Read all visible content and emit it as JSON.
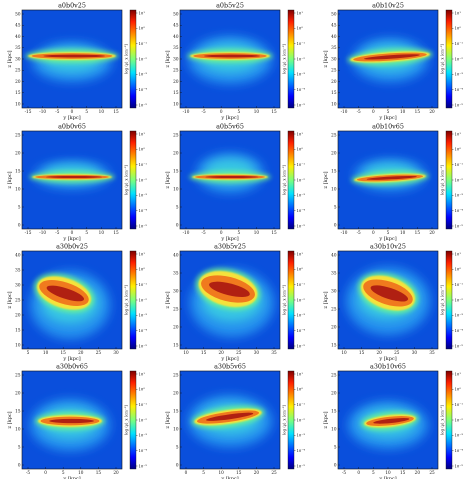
{
  "chart_data": {
    "type": "heatmap",
    "colormap": "jet",
    "panels": [
      {
        "title": "a0b0v25",
        "xlabel": "y [kpc]",
        "ylabel": "z [kpc]",
        "cbar_label": "log ⟨ρ⟩_x [cm⁻³]",
        "xticks": [
          "-15",
          "-10",
          "-5",
          "0",
          "5",
          "10",
          "15"
        ],
        "yticks": [
          "10",
          "15",
          "20",
          "25",
          "30",
          "35",
          "40",
          "45",
          "50"
        ],
        "cbticks": [
          "10¹",
          "10⁰",
          "10⁻¹",
          "10⁻²",
          "10⁻³",
          "10⁻⁴",
          "10⁻⁵"
        ]
      },
      {
        "title": "a0b5v25",
        "xlabel": "y [kpc]",
        "ylabel": "z [kpc]",
        "cbar_label": "log ⟨ρ⟩_x [cm⁻³]",
        "xticks": [
          "-10",
          "-5",
          "0",
          "5",
          "10",
          "15"
        ],
        "yticks": [
          "10",
          "15",
          "20",
          "25",
          "30",
          "35",
          "40",
          "45",
          "50"
        ],
        "cbticks": [
          "10¹",
          "10⁰",
          "10⁻¹",
          "10⁻²",
          "10⁻³",
          "10⁻⁴",
          "10⁻⁵"
        ]
      },
      {
        "title": "a0b10v25",
        "xlabel": "y [kpc]",
        "ylabel": "z [kpc]",
        "cbar_label": "log ⟨ρ⟩_x [cm⁻³]",
        "xticks": [
          "-10",
          "-5",
          "0",
          "5",
          "10",
          "15",
          "20"
        ],
        "yticks": [
          "10",
          "15",
          "20",
          "25",
          "30",
          "35",
          "40",
          "45",
          "50"
        ],
        "cbticks": [
          "10¹",
          "10⁰",
          "10⁻¹",
          "10⁻²",
          "10⁻³",
          "10⁻⁴",
          "10⁻⁵"
        ]
      },
      {
        "title": "a0b0v65",
        "xlabel": "y [kpc]",
        "ylabel": "z [kpc]",
        "cbar_label": "log ⟨ρ⟩_x [cm⁻³]",
        "xticks": [
          "-15",
          "-10",
          "-5",
          "0",
          "5",
          "10",
          "15"
        ],
        "yticks": [
          "0",
          "5",
          "10",
          "15",
          "20",
          "25"
        ],
        "cbticks": [
          "10¹",
          "10⁰",
          "10⁻¹",
          "10⁻²",
          "10⁻³",
          "10⁻⁴",
          "10⁻⁵"
        ]
      },
      {
        "title": "a0b5v65",
        "xlabel": "y [kpc]",
        "ylabel": "z [kpc]",
        "cbar_label": "log ⟨ρ⟩_x [cm⁻³]",
        "xticks": [
          "-10",
          "-5",
          "0",
          "5",
          "10",
          "15"
        ],
        "yticks": [
          "0",
          "5",
          "10",
          "15",
          "20",
          "25"
        ],
        "cbticks": [
          "10¹",
          "10⁰",
          "10⁻¹",
          "10⁻²",
          "10⁻³",
          "10⁻⁴",
          "10⁻⁵"
        ]
      },
      {
        "title": "a0b10v65",
        "xlabel": "y [kpc]",
        "ylabel": "z [kpc]",
        "cbar_label": "log ⟨ρ⟩_x [cm⁻³]",
        "xticks": [
          "-10",
          "-5",
          "0",
          "5",
          "10",
          "15",
          "20"
        ],
        "yticks": [
          "0",
          "5",
          "10",
          "15",
          "20",
          "25"
        ],
        "cbticks": [
          "10¹",
          "10⁰",
          "10⁻¹",
          "10⁻²",
          "10⁻³",
          "10⁻⁴",
          "10⁻⁵"
        ]
      },
      {
        "title": "a30b0v25",
        "xlabel": "y [kpc]",
        "ylabel": "z [kpc]",
        "cbar_label": "log ⟨ρ⟩_x [cm⁻³]",
        "xticks": [
          "5",
          "10",
          "15",
          "20",
          "25",
          "30"
        ],
        "yticks": [
          "10",
          "15",
          "20",
          "25",
          "30",
          "35",
          "40"
        ],
        "cbticks": [
          "10¹",
          "10⁰",
          "10⁻¹",
          "10⁻²",
          "10⁻³",
          "10⁻⁴",
          "10⁻⁵"
        ]
      },
      {
        "title": "a30b5v25",
        "xlabel": "y [kpc]",
        "ylabel": "z [kpc]",
        "cbar_label": "log ⟨ρ⟩_x [cm⁻³]",
        "xticks": [
          "10",
          "15",
          "20",
          "25",
          "30",
          "35"
        ],
        "yticks": [
          "15",
          "20",
          "25",
          "30",
          "35",
          "40"
        ],
        "cbticks": [
          "10¹",
          "10⁰",
          "10⁻¹",
          "10⁻²",
          "10⁻³",
          "10⁻⁴",
          "10⁻⁵"
        ]
      },
      {
        "title": "a30b10v25",
        "xlabel": "y [kpc]",
        "ylabel": "z [kpc]",
        "cbar_label": "log ⟨ρ⟩_x [cm⁻³]",
        "xticks": [
          "10",
          "15",
          "20",
          "25",
          "30",
          "35"
        ],
        "yticks": [
          "15",
          "20",
          "25",
          "30",
          "35",
          "40"
        ],
        "cbticks": [
          "10¹",
          "10⁰",
          "10⁻¹",
          "10⁻²",
          "10⁻³",
          "10⁻⁴",
          "10⁻⁵"
        ]
      },
      {
        "title": "a30b0v65",
        "xlabel": "y [kpc]",
        "ylabel": "z [kpc]",
        "cbar_label": "log ⟨ρ⟩_x [cm⁻³]",
        "xticks": [
          "-5",
          "0",
          "5",
          "10",
          "15",
          "20"
        ],
        "yticks": [
          "0",
          "5",
          "10",
          "15",
          "20",
          "25"
        ],
        "cbticks": [
          "10¹",
          "10⁰",
          "10⁻¹",
          "10⁻²",
          "10⁻³",
          "10⁻⁴",
          "10⁻⁵"
        ]
      },
      {
        "title": "a30b5v65",
        "xlabel": "y [kpc]",
        "ylabel": "z [kpc]",
        "cbar_label": "log ⟨ρ⟩_x [cm⁻³]",
        "xticks": [
          "0",
          "5",
          "10",
          "15",
          "20",
          "25"
        ],
        "yticks": [
          "0",
          "5",
          "10",
          "15",
          "20",
          "25"
        ],
        "cbticks": [
          "10¹",
          "10⁰",
          "10⁻¹",
          "10⁻²",
          "10⁻³",
          "10⁻⁴",
          "10⁻⁵"
        ]
      },
      {
        "title": "a30b10v65",
        "xlabel": "y [kpc]",
        "ylabel": "z [kpc]",
        "cbar_label": "log ⟨ρ⟩_x [cm⁻³]",
        "xticks": [
          "-5",
          "0",
          "5",
          "10",
          "15",
          "20",
          "25"
        ],
        "yticks": [
          "0",
          "5",
          "10",
          "15",
          "20",
          "25"
        ],
        "cbticks": [
          "10¹",
          "10⁰",
          "10⁻¹",
          "10⁻²",
          "10⁻³",
          "10⁻⁴",
          "10⁻⁵"
        ]
      }
    ]
  },
  "colors": {
    "background_field": "#0a4fdc",
    "halo_low": "#2a9ef2",
    "halo_mid": "#3ed6e0",
    "disk_edge": "#f5e23a",
    "disk_body": "#f07a1e",
    "disk_core": "#b02012"
  }
}
